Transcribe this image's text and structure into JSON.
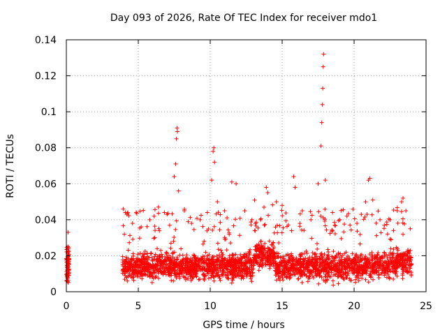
{
  "chart_data": {
    "type": "scatter",
    "title": "Day 093 of 2026, Rate Of TEC Index for receiver mdo1",
    "xlabel": "GPS time / hours",
    "ylabel": "ROTI / TECUs",
    "xlim": [
      0,
      25
    ],
    "ylim": [
      0,
      0.14
    ],
    "x_ticks": [
      "0",
      "5",
      "10",
      "15",
      "20",
      "25"
    ],
    "y_ticks": [
      "0",
      "0.02",
      "0.04",
      "0.06",
      "0.08",
      "0.1",
      "0.12",
      "0.14"
    ],
    "grid": true,
    "marker": "+",
    "color": "#ff0000",
    "series": [
      {
        "name": "ROTI",
        "points_note": "dense band of values roughly 0.005-0.03 from ~3.9h to 24h, plus sparse cluster 0-0.2h",
        "points": [
          [
            0.02,
            0.006
          ],
          [
            0.05,
            0.012
          ],
          [
            0.08,
            0.018
          ],
          [
            0.1,
            0.025
          ],
          [
            0.12,
            0.033
          ],
          [
            0.15,
            0.02
          ],
          [
            0.18,
            0.009
          ],
          [
            3.95,
            0.046
          ],
          [
            4.1,
            0.044
          ],
          [
            4.6,
            0.038
          ],
          [
            5.2,
            0.036
          ],
          [
            5.8,
            0.04
          ],
          [
            6.1,
            0.042
          ],
          [
            6.4,
            0.047
          ],
          [
            7.0,
            0.043
          ],
          [
            7.5,
            0.064
          ],
          [
            7.6,
            0.071
          ],
          [
            7.65,
            0.085
          ],
          [
            7.7,
            0.091
          ],
          [
            7.72,
            0.089
          ],
          [
            7.8,
            0.056
          ],
          [
            8.2,
            0.045
          ],
          [
            8.7,
            0.038
          ],
          [
            9.3,
            0.04
          ],
          [
            9.8,
            0.044
          ],
          [
            10.1,
            0.062
          ],
          [
            10.2,
            0.078
          ],
          [
            10.25,
            0.08
          ],
          [
            10.3,
            0.072
          ],
          [
            10.5,
            0.05
          ],
          [
            11.0,
            0.045
          ],
          [
            11.5,
            0.061
          ],
          [
            11.8,
            0.06
          ],
          [
            12.4,
            0.045
          ],
          [
            12.9,
            0.04
          ],
          [
            13.5,
            0.04
          ],
          [
            13.9,
            0.058
          ],
          [
            14.0,
            0.055
          ],
          [
            14.6,
            0.05
          ],
          [
            15.0,
            0.048
          ],
          [
            15.8,
            0.064
          ],
          [
            15.9,
            0.058
          ],
          [
            16.4,
            0.045
          ],
          [
            17.0,
            0.04
          ],
          [
            17.5,
            0.06
          ],
          [
            17.7,
            0.081
          ],
          [
            17.75,
            0.094
          ],
          [
            17.8,
            0.104
          ],
          [
            17.82,
            0.113
          ],
          [
            17.85,
            0.125
          ],
          [
            17.88,
            0.132
          ],
          [
            18.0,
            0.062
          ],
          [
            18.5,
            0.044
          ],
          [
            19.0,
            0.04
          ],
          [
            19.5,
            0.042
          ],
          [
            20.2,
            0.038
          ],
          [
            20.5,
            0.043
          ],
          [
            20.8,
            0.05
          ],
          [
            21.0,
            0.062
          ],
          [
            21.1,
            0.063
          ],
          [
            21.3,
            0.051
          ],
          [
            21.8,
            0.04
          ],
          [
            22.5,
            0.04
          ],
          [
            23.0,
            0.045
          ],
          [
            23.3,
            0.05
          ],
          [
            23.4,
            0.052
          ],
          [
            23.6,
            0.045
          ],
          [
            23.9,
            0.035
          ]
        ]
      }
    ]
  }
}
